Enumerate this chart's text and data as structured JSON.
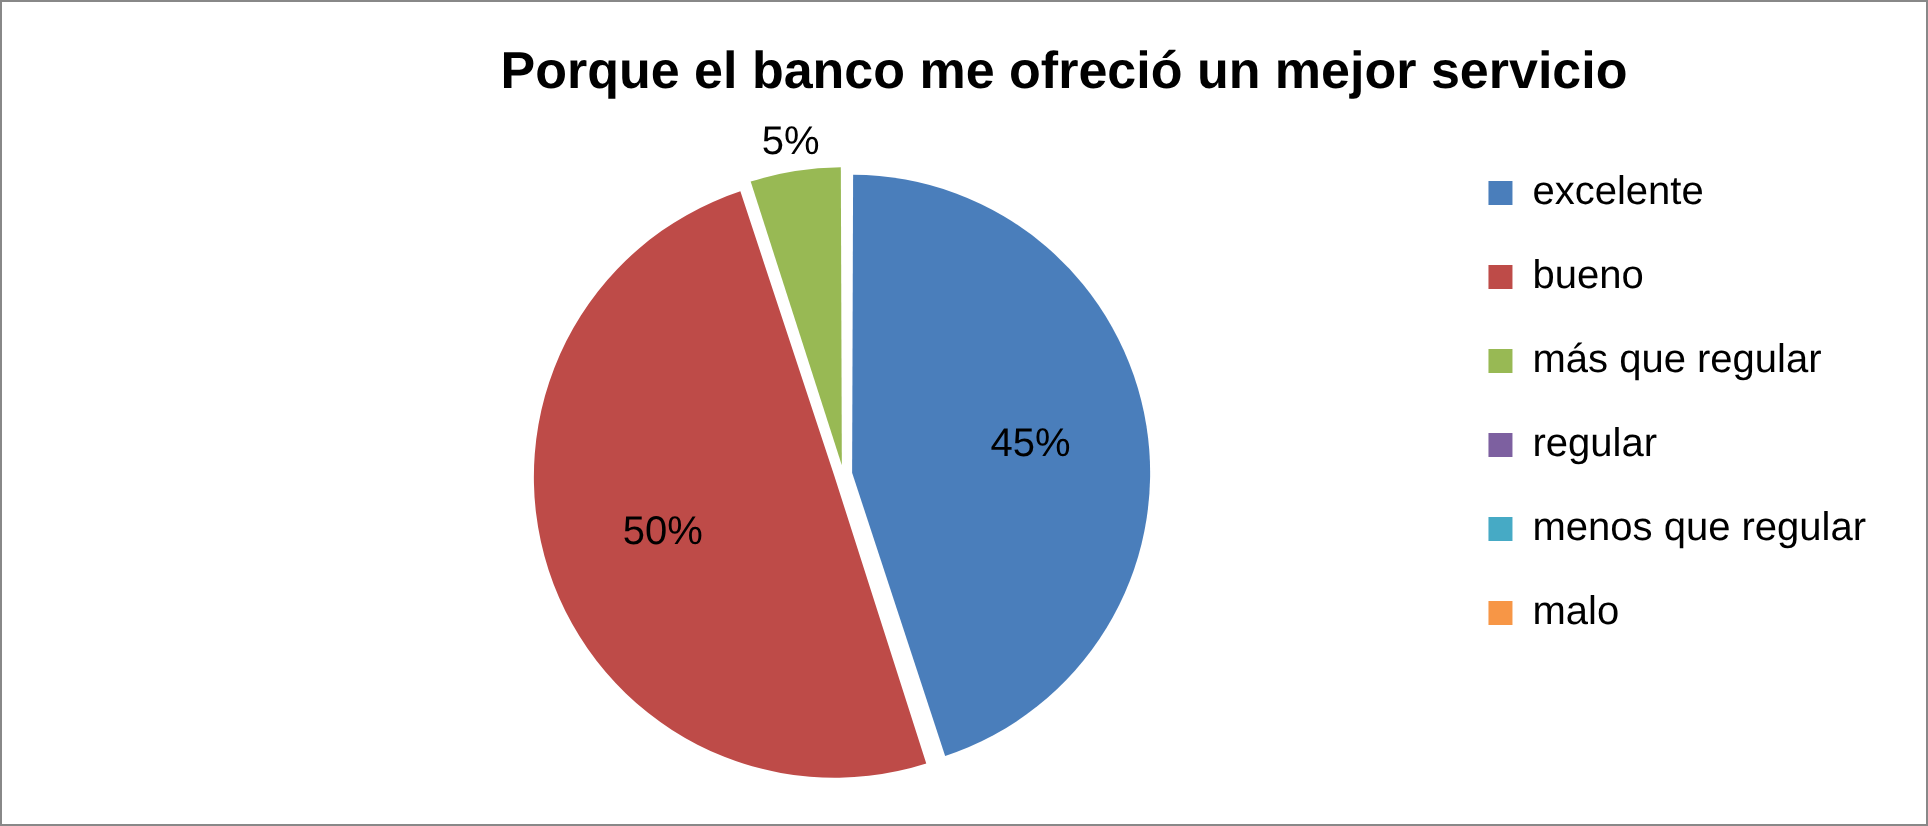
{
  "chart_data": {
    "type": "pie",
    "title": "Porque el banco me ofreció un mejor servicio",
    "categories": [
      "excelente",
      "bueno",
      "más que regular",
      "regular",
      "menos que regular",
      "malo"
    ],
    "values": [
      45,
      50,
      5,
      0,
      0,
      0
    ],
    "colors": [
      "#4a7ebb",
      "#be4b48",
      "#98b954",
      "#7d60a0",
      "#46aac5",
      "#f79646"
    ],
    "value_labels": [
      "45%",
      "50%",
      "5%",
      null,
      null,
      null
    ],
    "legend": "right"
  }
}
